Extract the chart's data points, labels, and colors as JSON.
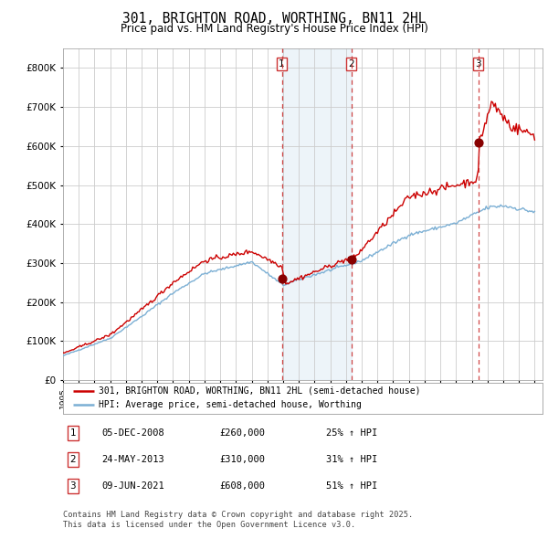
{
  "title": "301, BRIGHTON ROAD, WORTHING, BN11 2HL",
  "subtitle": "Price paid vs. HM Land Registry's House Price Index (HPI)",
  "legend_line1": "301, BRIGHTON ROAD, WORTHING, BN11 2HL (semi-detached house)",
  "legend_line2": "HPI: Average price, semi-detached house, Worthing",
  "sale1_date": "05-DEC-2008",
  "sale1_price": 260000,
  "sale1_hpi": "25% ↑ HPI",
  "sale2_date": "24-MAY-2013",
  "sale2_price": 310000,
  "sale2_hpi": "31% ↑ HPI",
  "sale3_date": "09-JUN-2021",
  "sale3_price": 608000,
  "sale3_hpi": "51% ↑ HPI",
  "footnote": "Contains HM Land Registry data © Crown copyright and database right 2025.\nThis data is licensed under the Open Government Licence v3.0.",
  "line_color_red": "#cc0000",
  "line_color_blue": "#7bafd4",
  "shade_color": "#cce0f0",
  "grid_color": "#cccccc",
  "background_color": "#ffffff",
  "ylim_max": 850000,
  "xstart": 1995,
  "xend": 2025
}
